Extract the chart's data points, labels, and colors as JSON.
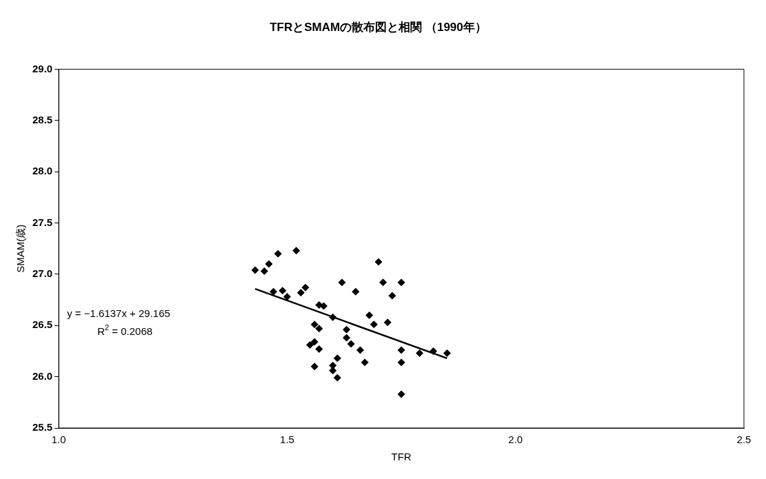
{
  "chart_data": {
    "type": "scatter",
    "title": "TFRとSMAMの散布図と相関 （1990年）",
    "xlabel": "TFR",
    "ylabel": "SMAM(歳)",
    "xlim": [
      1.0,
      2.5
    ],
    "xticks": [
      {
        "value": 1.0,
        "label": "1.0"
      },
      {
        "value": 1.5,
        "label": "1.5"
      },
      {
        "value": 2.0,
        "label": "2.0"
      },
      {
        "value": 2.5,
        "label": "2.5"
      }
    ],
    "ylim": [
      25.5,
      29.0
    ],
    "yticks": [
      {
        "value": 25.5,
        "label": "25.5"
      },
      {
        "value": 26.0,
        "label": "26.0"
      },
      {
        "value": 26.5,
        "label": "26.5"
      },
      {
        "value": 27.0,
        "label": "27.0"
      },
      {
        "value": 27.5,
        "label": "27.5"
      },
      {
        "value": 28.0,
        "label": "28.0"
      },
      {
        "value": 28.5,
        "label": "28.5"
      },
      {
        "value": 29.0,
        "label": "29.0"
      }
    ],
    "grid": false,
    "legend": false,
    "marker": "diamond",
    "series": [
      {
        "type": "scatter",
        "color": "#000000",
        "x": [
          1.43,
          1.45,
          1.46,
          1.47,
          1.48,
          1.49,
          1.5,
          1.52,
          1.53,
          1.54,
          1.55,
          1.56,
          1.56,
          1.56,
          1.57,
          1.57,
          1.57,
          1.58,
          1.6,
          1.6,
          1.6,
          1.61,
          1.61,
          1.62,
          1.63,
          1.63,
          1.64,
          1.65,
          1.66,
          1.67,
          1.68,
          1.69,
          1.7,
          1.71,
          1.72,
          1.73,
          1.75,
          1.75,
          1.75,
          1.75,
          1.79,
          1.82,
          1.85
        ],
        "values": [
          27.04,
          27.03,
          27.1,
          26.83,
          27.2,
          26.84,
          26.78,
          27.23,
          26.82,
          26.87,
          26.31,
          26.51,
          26.34,
          26.1,
          26.47,
          26.27,
          26.7,
          26.69,
          26.58,
          26.11,
          26.06,
          26.18,
          25.99,
          26.92,
          26.46,
          26.38,
          26.32,
          26.83,
          26.26,
          26.14,
          26.6,
          26.51,
          27.12,
          26.92,
          26.53,
          26.79,
          26.92,
          26.26,
          26.14,
          25.83,
          26.23,
          26.25,
          26.23
        ]
      },
      {
        "type": "line",
        "color": "#000000",
        "x": [
          1.43,
          1.85
        ],
        "values": [
          26.857,
          26.18
        ],
        "marker": "none"
      }
    ],
    "annotations": [
      "y = −1.6137x + 29.165",
      "R$^{2}$ = 0.2068"
    ]
  }
}
